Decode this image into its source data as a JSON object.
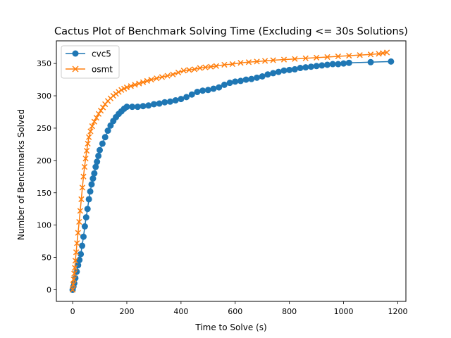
{
  "chart_data": {
    "type": "line",
    "title": "Cactus Plot of Benchmark Solving Time (Excluding <= 30s Solutions)",
    "xlabel": "Time to Solve (s)",
    "ylabel": "Number of Benchmarks Solved",
    "xlim": [
      -60,
      1230
    ],
    "ylim": [
      -18,
      385
    ],
    "xticks": [
      0,
      200,
      400,
      600,
      800,
      1000,
      1200
    ],
    "yticks": [
      0,
      50,
      100,
      150,
      200,
      250,
      300,
      350
    ],
    "grid": false,
    "legend_position": "top-left",
    "series": [
      {
        "name": "cvc5",
        "color": "#1f77b4",
        "marker": "circle",
        "points": [
          [
            0,
            0
          ],
          [
            3,
            5
          ],
          [
            6,
            10
          ],
          [
            10,
            18
          ],
          [
            15,
            28
          ],
          [
            20,
            38
          ],
          [
            25,
            46
          ],
          [
            30,
            55
          ],
          [
            35,
            68
          ],
          [
            40,
            82
          ],
          [
            45,
            98
          ],
          [
            50,
            112
          ],
          [
            55,
            125
          ],
          [
            60,
            140
          ],
          [
            65,
            152
          ],
          [
            70,
            163
          ],
          [
            75,
            172
          ],
          [
            80,
            180
          ],
          [
            85,
            190
          ],
          [
            90,
            198
          ],
          [
            95,
            207
          ],
          [
            100,
            216
          ],
          [
            110,
            226
          ],
          [
            120,
            236
          ],
          [
            130,
            246
          ],
          [
            140,
            254
          ],
          [
            150,
            261
          ],
          [
            160,
            267
          ],
          [
            170,
            272
          ],
          [
            180,
            276
          ],
          [
            190,
            280
          ],
          [
            200,
            283
          ],
          [
            220,
            283
          ],
          [
            240,
            283
          ],
          [
            260,
            284
          ],
          [
            280,
            285
          ],
          [
            300,
            287
          ],
          [
            320,
            288
          ],
          [
            340,
            290
          ],
          [
            360,
            291
          ],
          [
            380,
            293
          ],
          [
            400,
            295
          ],
          [
            420,
            298
          ],
          [
            440,
            302
          ],
          [
            460,
            306
          ],
          [
            480,
            308
          ],
          [
            500,
            309
          ],
          [
            520,
            311
          ],
          [
            540,
            313
          ],
          [
            560,
            317
          ],
          [
            580,
            320
          ],
          [
            600,
            322
          ],
          [
            620,
            323
          ],
          [
            640,
            325
          ],
          [
            660,
            326
          ],
          [
            680,
            328
          ],
          [
            700,
            330
          ],
          [
            720,
            333
          ],
          [
            740,
            335
          ],
          [
            760,
            337
          ],
          [
            780,
            339
          ],
          [
            800,
            340
          ],
          [
            820,
            341
          ],
          [
            840,
            343
          ],
          [
            860,
            344
          ],
          [
            880,
            345
          ],
          [
            900,
            346
          ],
          [
            920,
            347
          ],
          [
            940,
            348
          ],
          [
            960,
            349
          ],
          [
            980,
            349
          ],
          [
            1000,
            350
          ],
          [
            1020,
            351
          ],
          [
            1100,
            352
          ],
          [
            1175,
            353
          ]
        ]
      },
      {
        "name": "osmt",
        "color": "#ff7f0e",
        "marker": "x",
        "points": [
          [
            0,
            0
          ],
          [
            2,
            8
          ],
          [
            4,
            16
          ],
          [
            6,
            25
          ],
          [
            8,
            34
          ],
          [
            10,
            45
          ],
          [
            13,
            58
          ],
          [
            16,
            72
          ],
          [
            20,
            88
          ],
          [
            24,
            105
          ],
          [
            28,
            122
          ],
          [
            32,
            140
          ],
          [
            36,
            158
          ],
          [
            40,
            175
          ],
          [
            44,
            190
          ],
          [
            48,
            203
          ],
          [
            52,
            215
          ],
          [
            56,
            226
          ],
          [
            60,
            236
          ],
          [
            66,
            245
          ],
          [
            72,
            253
          ],
          [
            80,
            260
          ],
          [
            88,
            266
          ],
          [
            96,
            272
          ],
          [
            104,
            277
          ],
          [
            112,
            282
          ],
          [
            120,
            287
          ],
          [
            130,
            292
          ],
          [
            140,
            296
          ],
          [
            150,
            300
          ],
          [
            160,
            303
          ],
          [
            170,
            306
          ],
          [
            180,
            309
          ],
          [
            190,
            311
          ],
          [
            200,
            313
          ],
          [
            215,
            315
          ],
          [
            230,
            317
          ],
          [
            245,
            319
          ],
          [
            260,
            321
          ],
          [
            275,
            323
          ],
          [
            290,
            325
          ],
          [
            310,
            327
          ],
          [
            330,
            329
          ],
          [
            350,
            331
          ],
          [
            370,
            333
          ],
          [
            390,
            336
          ],
          [
            410,
            339
          ],
          [
            430,
            340
          ],
          [
            450,
            341
          ],
          [
            470,
            343
          ],
          [
            490,
            344
          ],
          [
            510,
            345
          ],
          [
            530,
            346
          ],
          [
            560,
            348
          ],
          [
            590,
            349
          ],
          [
            620,
            351
          ],
          [
            650,
            352
          ],
          [
            680,
            353
          ],
          [
            710,
            354
          ],
          [
            740,
            355
          ],
          [
            780,
            356
          ],
          [
            820,
            357
          ],
          [
            860,
            358
          ],
          [
            900,
            359
          ],
          [
            940,
            360
          ],
          [
            980,
            361
          ],
          [
            1020,
            362
          ],
          [
            1060,
            363
          ],
          [
            1100,
            364
          ],
          [
            1130,
            365
          ],
          [
            1145,
            366
          ],
          [
            1160,
            367
          ]
        ]
      }
    ]
  }
}
